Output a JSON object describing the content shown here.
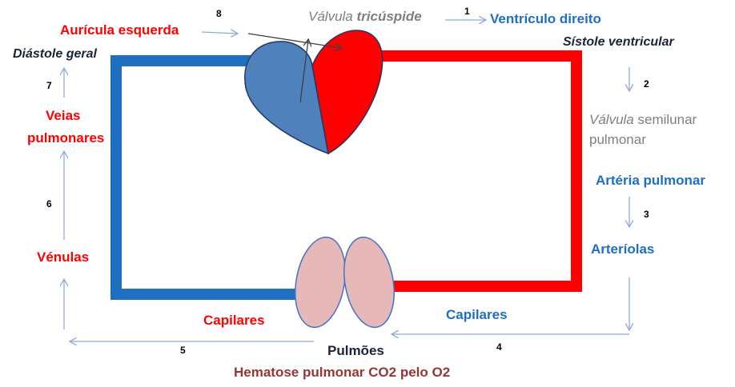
{
  "labels": {
    "auricula_esquerda": "Aurícula esquerda",
    "valvula_tricuspide_a": "Válvula",
    "valvula_tricuspide_b": "tricúspide",
    "ventriculo_direito": "Ventrículo  direito",
    "diastole_geral": "Diástole geral",
    "sistole_ventricular": "Sístole ventricular",
    "veias_pulmonares_1": "Veias",
    "veias_pulmonares_2": "pulmonares",
    "valvula_semilunar_a": "Válvula",
    "valvula_semilunar_b": "semilunar",
    "valvula_semilunar_c": "pulmonar",
    "arteria_pulmonar": "Artéria pulmonar",
    "venulas": "Vénulas",
    "arteriolas": "Arteríolas",
    "capilares_left": "Capilares",
    "capilares_right": "Capilares",
    "pulmoes": "Pulmões",
    "hematose": "Hematose pulmonar CO2 pelo O2"
  },
  "steps": [
    "1",
    "2",
    "3",
    "4",
    "5",
    "6",
    "7",
    "8"
  ],
  "colors": {
    "venous": "#1f6fc1",
    "arterial": "#ff0000",
    "heart_left": "#4f81bd",
    "heart_right": "#ff0000",
    "lungs": "#e6b9b8",
    "arrows": "#8eaadb"
  }
}
